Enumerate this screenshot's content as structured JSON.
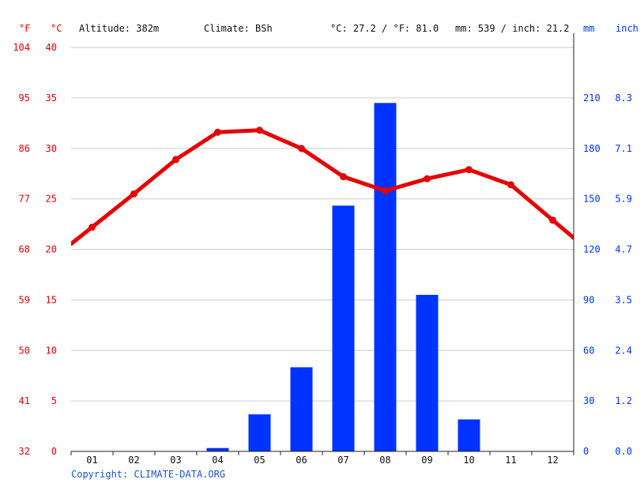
{
  "header": {
    "unit_f": "°F",
    "unit_c": "°C",
    "altitude": "Altitude: 382m",
    "climate": "Climate: BSh",
    "temp_avg": "°C: 27.2 / °F: 81.0",
    "precip_total": "mm: 539 / inch: 21.2",
    "unit_mm": "mm",
    "unit_inch": "inch"
  },
  "footer": {
    "copyright": "Copyright: CLIMATE-DATA.ORG"
  },
  "colors": {
    "temperature": "#e60000",
    "precipitation": "#0033ff",
    "grid": "#cccccc"
  },
  "chart_data": {
    "type": "bar+line",
    "categories": [
      "01",
      "02",
      "03",
      "04",
      "05",
      "06",
      "07",
      "08",
      "09",
      "10",
      "11",
      "12"
    ],
    "series": [
      {
        "type": "bar",
        "axis": "right",
        "unit": "mm",
        "values": [
          0,
          0,
          0,
          2,
          22,
          50,
          146,
          207,
          93,
          19,
          0,
          0
        ]
      },
      {
        "type": "line",
        "axis": "left",
        "unit": "°C",
        "values": [
          22.2,
          25.5,
          28.9,
          31.6,
          31.8,
          30.0,
          27.2,
          25.8,
          27.0,
          27.9,
          26.4,
          22.9
        ]
      }
    ],
    "axes": {
      "left_c": {
        "ticks": [
          "0",
          "5",
          "10",
          "15",
          "20",
          "25",
          "30",
          "35",
          "40"
        ],
        "range": [
          0,
          40
        ]
      },
      "left_f": {
        "ticks": [
          "32",
          "41",
          "50",
          "59",
          "68",
          "77",
          "86",
          "95",
          "104"
        ]
      },
      "right_mm": {
        "ticks": [
          "0",
          "30",
          "60",
          "90",
          "120",
          "150",
          "180",
          "210"
        ],
        "range": [
          0,
          240
        ]
      },
      "right_inch": {
        "ticks": [
          "0.0",
          "1.2",
          "2.4",
          "3.5",
          "4.7",
          "5.9",
          "7.1",
          "8.3"
        ]
      }
    },
    "grid": true
  }
}
